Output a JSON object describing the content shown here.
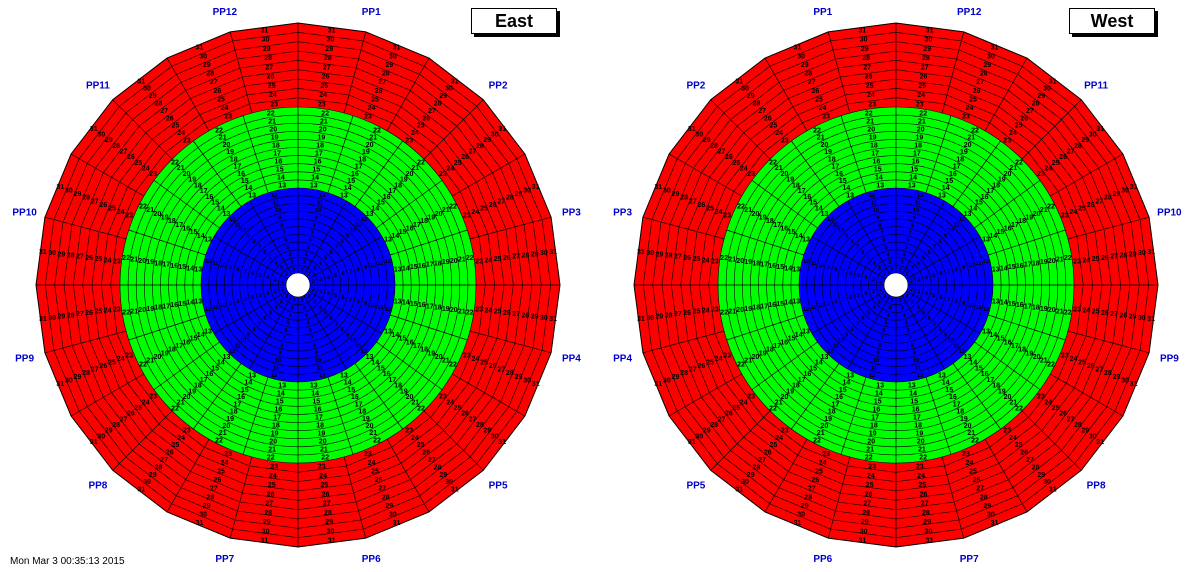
{
  "panels": [
    {
      "title": "East",
      "pp_labels": [
        "PP1",
        "PP2",
        "PP3",
        "PP4",
        "PP5",
        "PP6",
        "PP7",
        "PP8",
        "PP9",
        "PP10",
        "PP11",
        "PP12"
      ]
    },
    {
      "title": "West",
      "pp_labels": [
        "PP12",
        "PP11",
        "PP10",
        "PP9",
        "PP8",
        "PP7",
        "PP6",
        "PP5",
        "PP4",
        "PP3",
        "PP2",
        "PP1"
      ]
    }
  ],
  "ring_numbers": [
    "2",
    "3",
    "4",
    "5",
    "6",
    "7",
    "8",
    "9",
    "10",
    "11",
    "12",
    "13",
    "14",
    "15",
    "16",
    "17",
    "18",
    "19",
    "20",
    "21",
    "22",
    "23",
    "24",
    "25",
    "26",
    "27",
    "28",
    "29",
    "30",
    "31"
  ],
  "colors": {
    "inner": "#0000ff",
    "middle": "#00ff00",
    "outer": "#ff0000",
    "grid": "#000000",
    "pp_label": "#0000cc",
    "background": "#ffffff"
  },
  "footer": "Mon Mar  3 00:35:13 2015"
}
